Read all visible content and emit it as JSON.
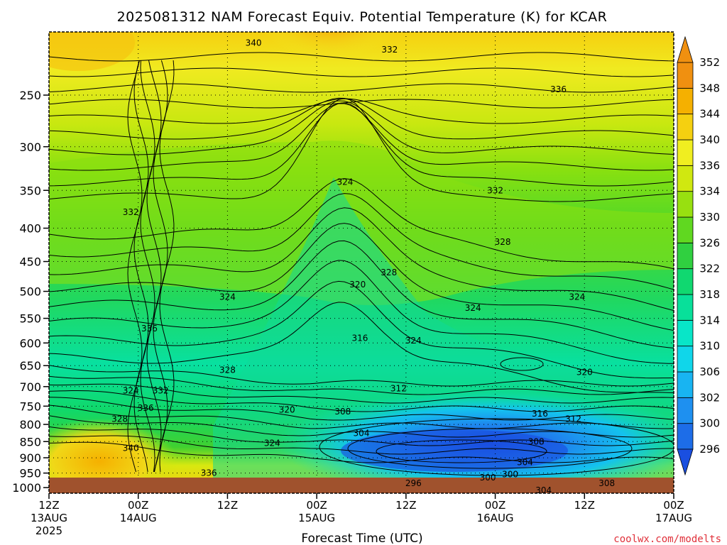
{
  "chart_data": {
    "type": "heatmap",
    "title": "2025081312 NAM Forecast Equiv. Potential Temperature (K) for KCAR",
    "xlabel": "Forecast Time (UTC)",
    "ylabel": "",
    "credit": "coolwx.com/modelts",
    "y_axis_scale": "log",
    "ylim": [
      200,
      1020
    ],
    "y_ticks": [
      250,
      300,
      350,
      400,
      450,
      500,
      550,
      600,
      650,
      700,
      750,
      800,
      850,
      900,
      950,
      1000
    ],
    "xlim_hours": [
      0,
      84
    ],
    "x_ticks": [
      {
        "hour": 0,
        "time": "12Z",
        "date": "13AUG",
        "year": "2025"
      },
      {
        "hour": 12,
        "time": "00Z",
        "date": "14AUG",
        "year": ""
      },
      {
        "hour": 24,
        "time": "12Z",
        "date": "",
        "year": ""
      },
      {
        "hour": 36,
        "time": "00Z",
        "date": "15AUG",
        "year": ""
      },
      {
        "hour": 48,
        "time": "12Z",
        "date": "",
        "year": ""
      },
      {
        "hour": 60,
        "time": "00Z",
        "date": "16AUG",
        "year": ""
      },
      {
        "hour": 72,
        "time": "12Z",
        "date": "",
        "year": ""
      },
      {
        "hour": 84,
        "time": "00Z",
        "date": "17AUG",
        "year": ""
      }
    ],
    "grid": true,
    "colorbar": {
      "position": "right",
      "levels": [
        296,
        300,
        302,
        306,
        310,
        314,
        318,
        322,
        326,
        330,
        334,
        336,
        340,
        344,
        348,
        352
      ],
      "colors": [
        "#1a4fe0",
        "#1d6de8",
        "#1e90f0",
        "#18b4f2",
        "#10d6ea",
        "#08e6c8",
        "#08e09a",
        "#10d870",
        "#30d040",
        "#60d820",
        "#98e010",
        "#d0e810",
        "#f0ee20",
        "#f5d010",
        "#f5b000",
        "#f09010"
      ]
    },
    "contour_labels": [
      {
        "value": "340",
        "hour": 27.5,
        "p": 208
      },
      {
        "value": "332",
        "hour": 45.8,
        "p": 213
      },
      {
        "value": "336",
        "hour": 68.5,
        "p": 245
      },
      {
        "value": "332",
        "hour": 60,
        "p": 350
      },
      {
        "value": "328",
        "hour": 61,
        "p": 420
      },
      {
        "value": "324",
        "hour": 39.8,
        "p": 340
      },
      {
        "value": "332",
        "hour": 11,
        "p": 378
      },
      {
        "value": "328",
        "hour": 45.7,
        "p": 468
      },
      {
        "value": "320",
        "hour": 41.5,
        "p": 488
      },
      {
        "value": "324",
        "hour": 24,
        "p": 510
      },
      {
        "value": "324",
        "hour": 57,
        "p": 530
      },
      {
        "value": "324",
        "hour": 71,
        "p": 510
      },
      {
        "value": "336",
        "hour": 13.5,
        "p": 570
      },
      {
        "value": "316",
        "hour": 41.8,
        "p": 590
      },
      {
        "value": "324",
        "hour": 49,
        "p": 595
      },
      {
        "value": "328",
        "hour": 24,
        "p": 660
      },
      {
        "value": "320",
        "hour": 72,
        "p": 665
      },
      {
        "value": "312",
        "hour": 47,
        "p": 705
      },
      {
        "value": "324",
        "hour": 11,
        "p": 710
      },
      {
        "value": "332",
        "hour": 15,
        "p": 710
      },
      {
        "value": "316",
        "hour": 66,
        "p": 770
      },
      {
        "value": "320",
        "hour": 32,
        "p": 760
      },
      {
        "value": "336",
        "hour": 13,
        "p": 755
      },
      {
        "value": "308",
        "hour": 39.5,
        "p": 765
      },
      {
        "value": "312",
        "hour": 70.5,
        "p": 785
      },
      {
        "value": "328",
        "hour": 9.5,
        "p": 785
      },
      {
        "value": "304",
        "hour": 42,
        "p": 825
      },
      {
        "value": "308",
        "hour": 65.5,
        "p": 850
      },
      {
        "value": "324",
        "hour": 30,
        "p": 855
      },
      {
        "value": "340",
        "hour": 11,
        "p": 870
      },
      {
        "value": "304",
        "hour": 64,
        "p": 915
      },
      {
        "value": "336",
        "hour": 21.5,
        "p": 950
      },
      {
        "value": "300",
        "hour": 59,
        "p": 965
      },
      {
        "value": "300",
        "hour": 62,
        "p": 955
      },
      {
        "value": "296",
        "hour": 49,
        "p": 985
      },
      {
        "value": "308",
        "hour": 75,
        "p": 985
      },
      {
        "value": "304",
        "hour": 66.5,
        "p": 1010
      }
    ]
  }
}
